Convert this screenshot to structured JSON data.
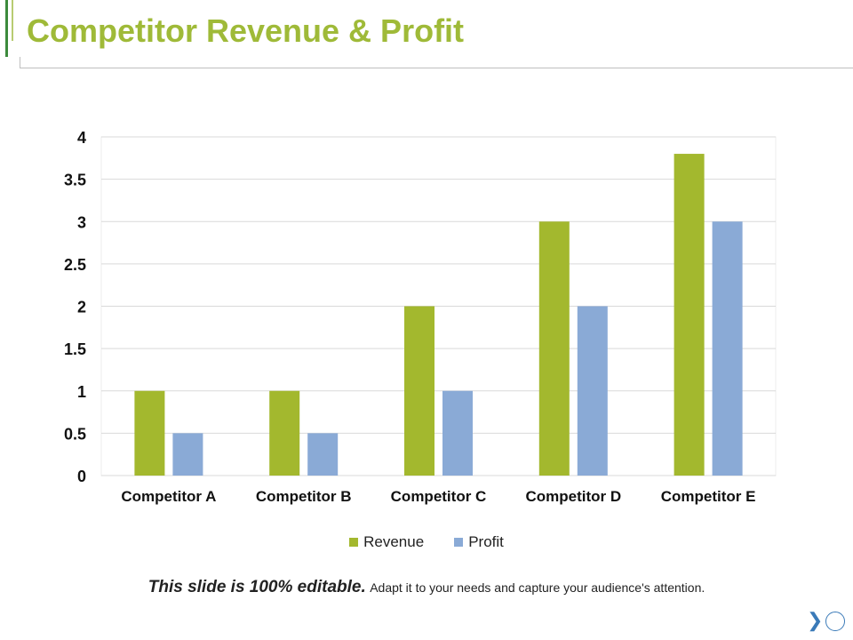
{
  "slide": {
    "title": "Competitor Revenue & Profit",
    "footer_strong": "This slide is 100% editable.",
    "footer_rest": "Adapt it to your needs and capture your audience's attention.",
    "next_icon": "chevron-right-icon",
    "circle_icon": "circle-icon"
  },
  "colors": {
    "title": "#9fba38",
    "revenue": "#a3b82e",
    "profit": "#8aaad6",
    "grid": "#d9d9d9"
  },
  "chart_data": {
    "type": "bar",
    "categories": [
      "Competitor A",
      "Competitor B",
      "Competitor C",
      "Competitor D",
      "Competitor E"
    ],
    "series": [
      {
        "name": "Revenue",
        "values": [
          1,
          1,
          2,
          3,
          3.8
        ]
      },
      {
        "name": "Profit",
        "values": [
          0.5,
          0.5,
          1,
          2,
          3
        ]
      }
    ],
    "ylim": [
      0,
      4
    ],
    "yticks": [
      "0",
      "0.5",
      "1",
      "1.5",
      "2",
      "2.5",
      "3",
      "3.5",
      "4"
    ],
    "grid": true,
    "legend_position": "bottom"
  }
}
